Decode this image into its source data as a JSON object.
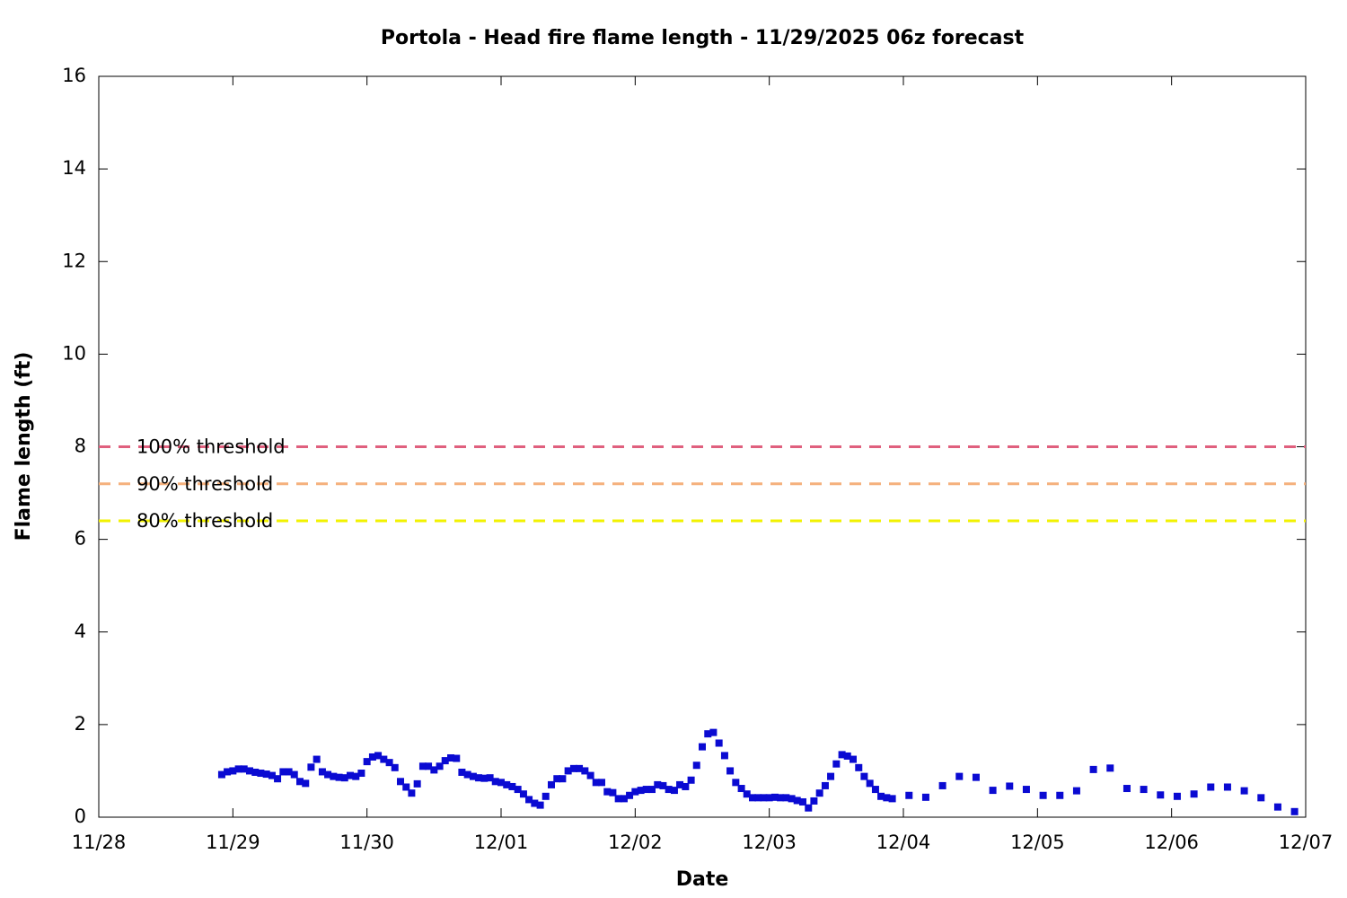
{
  "chart_data": {
    "type": "scatter",
    "title": "Portola - Head fire flame length - 11/29/2025 06z forecast",
    "x_label": "Date",
    "y_label": "Flame length (ft)",
    "xlim": [
      0,
      9
    ],
    "xticks": [
      {
        "value": 0,
        "label": "11/28"
      },
      {
        "value": 1,
        "label": "11/29"
      },
      {
        "value": 2,
        "label": "11/30"
      },
      {
        "value": 3,
        "label": "12/01"
      },
      {
        "value": 4,
        "label": "12/02"
      },
      {
        "value": 5,
        "label": "12/03"
      },
      {
        "value": 6,
        "label": "12/04"
      },
      {
        "value": 7,
        "label": "12/05"
      },
      {
        "value": 8,
        "label": "12/06"
      },
      {
        "value": 9,
        "label": "12/07"
      }
    ],
    "ylim": [
      0,
      16
    ],
    "yticks": [
      0,
      2,
      4,
      6,
      8,
      10,
      12,
      14,
      16
    ],
    "thresholds": [
      {
        "name": "100% threshold",
        "value": 8,
        "color": "#e0607e"
      },
      {
        "name": "90% threshold",
        "value": 7.2,
        "color": "#f5b07c"
      },
      {
        "name": "80% threshold",
        "value": 6.4,
        "color": "#f2f200"
      }
    ],
    "x": [
      0.917,
      0.958,
      1,
      1.042,
      1.083,
      1.125,
      1.167,
      1.208,
      1.25,
      1.292,
      1.333,
      1.375,
      1.417,
      1.458,
      1.5,
      1.542,
      1.583,
      1.625,
      1.667,
      1.708,
      1.75,
      1.792,
      1.833,
      1.875,
      1.917,
      1.958,
      2,
      2.042,
      2.083,
      2.125,
      2.167,
      2.208,
      2.25,
      2.292,
      2.333,
      2.375,
      2.417,
      2.458,
      2.5,
      2.542,
      2.583,
      2.625,
      2.667,
      2.708,
      2.75,
      2.792,
      2.833,
      2.875,
      2.917,
      2.958,
      3,
      3.042,
      3.083,
      3.125,
      3.167,
      3.208,
      3.25,
      3.292,
      3.333,
      3.375,
      3.417,
      3.458,
      3.5,
      3.542,
      3.583,
      3.625,
      3.667,
      3.708,
      3.75,
      3.792,
      3.833,
      3.875,
      3.917,
      3.958,
      4,
      4.042,
      4.083,
      4.125,
      4.167,
      4.208,
      4.25,
      4.292,
      4.333,
      4.375,
      4.417,
      4.458,
      4.5,
      4.542,
      4.583,
      4.625,
      4.667,
      4.708,
      4.75,
      4.792,
      4.833,
      4.875,
      4.917,
      4.958,
      5,
      5.042,
      5.083,
      5.125,
      5.167,
      5.208,
      5.25,
      5.292,
      5.333,
      5.375,
      5.417,
      5.458,
      5.5,
      5.542,
      5.583,
      5.625,
      5.667,
      5.708,
      5.75,
      5.792,
      5.833,
      5.875,
      5.917,
      6.042,
      6.167,
      6.292,
      6.417,
      6.542,
      6.667,
      6.792,
      6.917,
      7.042,
      7.167,
      7.292,
      7.417,
      7.542,
      7.667,
      7.792,
      7.917,
      8.042,
      8.167,
      8.292,
      8.417,
      8.542,
      8.667,
      8.792,
      8.917
    ],
    "series": [
      {
        "color": "#0a0ad2",
        "values": [
          0.92,
          0.98,
          1.0,
          1.04,
          1.04,
          1.0,
          0.97,
          0.95,
          0.93,
          0.9,
          0.83,
          0.98,
          0.98,
          0.92,
          0.77,
          0.73,
          1.08,
          1.25,
          0.98,
          0.92,
          0.88,
          0.86,
          0.85,
          0.9,
          0.88,
          0.95,
          1.2,
          1.3,
          1.33,
          1.25,
          1.18,
          1.07,
          0.77,
          0.65,
          0.52,
          0.72,
          1.1,
          1.1,
          1.02,
          1.1,
          1.22,
          1.28,
          1.27,
          0.97,
          0.92,
          0.88,
          0.85,
          0.84,
          0.85,
          0.77,
          0.75,
          0.7,
          0.66,
          0.6,
          0.5,
          0.38,
          0.3,
          0.26,
          0.45,
          0.7,
          0.83,
          0.83,
          1.0,
          1.05,
          1.05,
          1.0,
          0.9,
          0.75,
          0.75,
          0.55,
          0.53,
          0.4,
          0.4,
          0.47,
          0.55,
          0.58,
          0.6,
          0.6,
          0.7,
          0.68,
          0.6,
          0.58,
          0.7,
          0.66,
          0.8,
          1.12,
          1.52,
          1.8,
          1.83,
          1.6,
          1.33,
          1.0,
          0.75,
          0.62,
          0.5,
          0.42,
          0.42,
          0.42,
          0.42,
          0.43,
          0.42,
          0.42,
          0.4,
          0.36,
          0.33,
          0.2,
          0.35,
          0.52,
          0.68,
          0.88,
          1.15,
          1.35,
          1.32,
          1.25,
          1.07,
          0.88,
          0.73,
          0.6,
          0.45,
          0.42,
          0.4,
          0.47,
          0.43,
          0.68,
          0.88,
          0.86,
          0.58,
          0.67,
          0.6,
          0.47,
          0.47,
          0.57,
          1.03,
          1.06,
          0.62,
          0.6,
          0.48,
          0.45,
          0.5,
          0.65,
          0.65,
          0.57,
          0.42,
          0.22,
          0.12
        ]
      }
    ]
  }
}
